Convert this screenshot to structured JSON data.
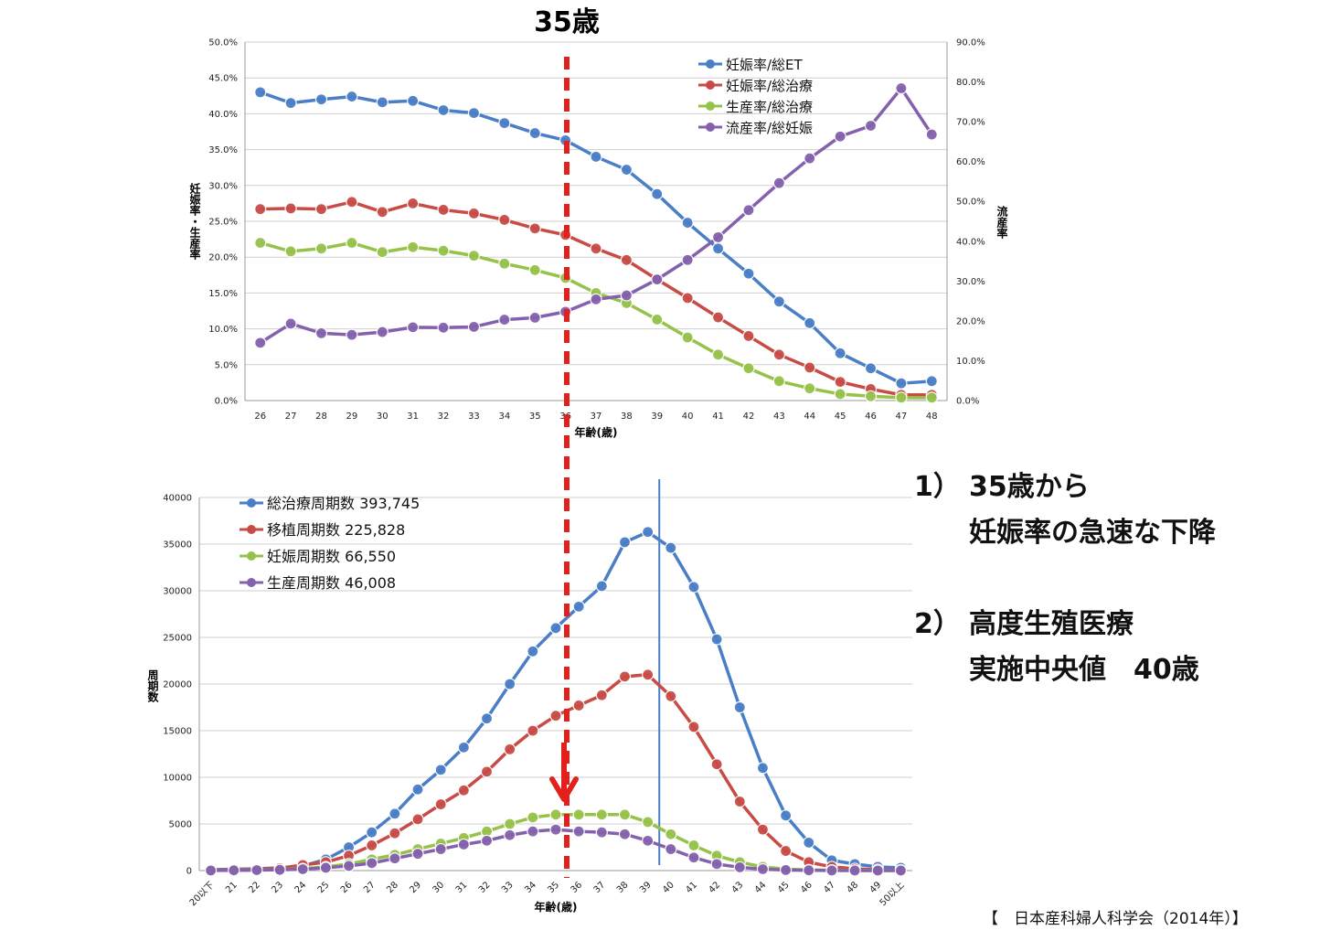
{
  "annotation_35": "35歳",
  "notes": [
    {
      "num": "1）",
      "line1": "35歳から",
      "line2": "妊娠率の急速な下降"
    },
    {
      "num": "2）",
      "line1": "高度生殖医療",
      "line2": "実施中央値　40歳"
    }
  ],
  "source": "【　日本産科婦人科学会（2014年）】",
  "colors": {
    "blue": "#4a7ec7",
    "red": "#c84b46",
    "green": "#96c24a",
    "purple": "#8461ad",
    "marker": "#e3201b"
  },
  "chart_data": [
    {
      "type": "line",
      "xlabel": "年齢(歳)",
      "ylabel": "妊娠率・生産率",
      "y2label": "流産率",
      "categories": [
        "26",
        "27",
        "28",
        "29",
        "30",
        "31",
        "32",
        "33",
        "34",
        "35",
        "36",
        "37",
        "38",
        "39",
        "40",
        "41",
        "42",
        "43",
        "44",
        "45",
        "46",
        "47",
        "48"
      ],
      "ylim": [
        0,
        50
      ],
      "y2lim": [
        0,
        90
      ],
      "yticks": [
        "0.0%",
        "5.0%",
        "10.0%",
        "15.0%",
        "20.0%",
        "25.0%",
        "30.0%",
        "35.0%",
        "40.0%",
        "45.0%",
        "50.0%"
      ],
      "y2ticks": [
        "0.0%",
        "10.0%",
        "20.0%",
        "30.0%",
        "40.0%",
        "50.0%",
        "60.0%",
        "70.0%",
        "80.0%",
        "90.0%"
      ],
      "legend_position": "top-right",
      "grid": true,
      "series": [
        {
          "name": "妊娠率/総ET",
          "axis": "left",
          "color": "#4a7ec7",
          "values": [
            43.0,
            41.5,
            42.0,
            42.4,
            41.6,
            41.8,
            40.5,
            40.1,
            38.7,
            37.3,
            36.3,
            34.0,
            32.2,
            28.8,
            24.8,
            21.2,
            17.7,
            13.8,
            10.8,
            6.6,
            4.5,
            2.4,
            2.7
          ]
        },
        {
          "name": "妊娠率/総治療",
          "axis": "left",
          "color": "#c84b46",
          "values": [
            26.7,
            26.8,
            26.7,
            27.7,
            26.3,
            27.5,
            26.6,
            26.1,
            25.2,
            24.0,
            23.1,
            21.2,
            19.6,
            16.9,
            14.3,
            11.6,
            9.0,
            6.4,
            4.6,
            2.6,
            1.6,
            0.8,
            0.8
          ]
        },
        {
          "name": "生産率/総治療",
          "axis": "left",
          "color": "#96c24a",
          "values": [
            22.0,
            20.8,
            21.2,
            22.0,
            20.7,
            21.4,
            20.9,
            20.2,
            19.1,
            18.2,
            17.1,
            15.0,
            13.6,
            11.3,
            8.8,
            6.4,
            4.5,
            2.7,
            1.7,
            0.9,
            0.6,
            0.4,
            0.4
          ]
        },
        {
          "name": "流産率/総妊娠",
          "axis": "right",
          "color": "#8461ad",
          "values": [
            14.5,
            19.3,
            16.9,
            16.5,
            17.2,
            18.4,
            18.3,
            18.5,
            20.3,
            20.8,
            22.3,
            25.4,
            26.4,
            30.4,
            35.3,
            41.0,
            47.8,
            54.6,
            60.8,
            66.3,
            69.0,
            78.4,
            66.8
          ]
        }
      ]
    },
    {
      "type": "line",
      "xlabel": "年齢(歳)",
      "ylabel": "周期数",
      "categories": [
        "20以下",
        "21",
        "22",
        "23",
        "24",
        "25",
        "26",
        "27",
        "28",
        "29",
        "30",
        "31",
        "32",
        "33",
        "34",
        "35",
        "36",
        "37",
        "38",
        "39",
        "40",
        "41",
        "42",
        "43",
        "44",
        "45",
        "46",
        "47",
        "48",
        "49",
        "50以上"
      ],
      "ylim": [
        0,
        40000
      ],
      "yticks": [
        "0",
        "5000",
        "10000",
        "15000",
        "20000",
        "25000",
        "30000",
        "35000",
        "40000"
      ],
      "legend_position": "top-left",
      "grid": true,
      "median_line_at": 39.5,
      "series": [
        {
          "name": "総治療周期数 393,745",
          "color": "#4a7ec7",
          "values": [
            100,
            150,
            200,
            300,
            500,
            1200,
            2500,
            4100,
            6100,
            8700,
            10800,
            13200,
            16300,
            20000,
            23500,
            26000,
            28300,
            30500,
            35200,
            36300,
            34600,
            30400,
            24800,
            17500,
            11000,
            5900,
            3000,
            1100,
            700,
            400,
            300
          ]
        },
        {
          "name": "移植周期数 225,828",
          "color": "#c84b46",
          "values": [
            50,
            100,
            150,
            250,
            600,
            900,
            1600,
            2700,
            4000,
            5500,
            7100,
            8600,
            10600,
            13000,
            15000,
            16600,
            17700,
            18800,
            20800,
            21000,
            18700,
            15400,
            11400,
            7400,
            4400,
            2100,
            900,
            400,
            200,
            100,
            50
          ]
        },
        {
          "name": "妊娠周期数 66,550",
          "color": "#96c24a",
          "values": [
            20,
            40,
            60,
            100,
            200,
            400,
            700,
            1200,
            1700,
            2300,
            2900,
            3500,
            4200,
            5000,
            5700,
            6000,
            6000,
            6000,
            6000,
            5200,
            3900,
            2700,
            1600,
            900,
            400,
            150,
            80,
            40,
            20,
            10,
            10
          ]
        },
        {
          "name": "生産周期数 46,008",
          "color": "#8461ad",
          "values": [
            10,
            30,
            50,
            80,
            150,
            300,
            500,
            800,
            1300,
            1800,
            2300,
            2800,
            3200,
            3800,
            4200,
            4400,
            4200,
            4100,
            3900,
            3200,
            2300,
            1400,
            700,
            350,
            150,
            60,
            30,
            10,
            5,
            5,
            5
          ]
        }
      ]
    }
  ]
}
